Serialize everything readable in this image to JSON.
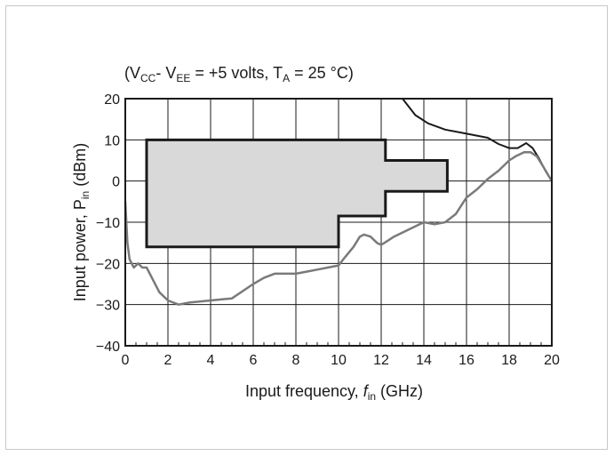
{
  "chart_data": {
    "type": "line",
    "title": "(V_CC - V_EE = +5 volts, T_A = 25 °C)",
    "title_parts": {
      "open": "(V",
      "cc": "CC",
      "mid": "- V",
      "ee": "EE",
      "eq": " = +5 volts, T",
      "ta": "A",
      "tail": " = 25 °C)"
    },
    "xlabel": "Input frequency, f_in (GHz)",
    "xlabel_parts": {
      "text": "Input frequency, ",
      "f": "f",
      "sub": "in",
      "unit": " (GHz)"
    },
    "ylabel": "Input power, P_in (dBm)",
    "ylabel_parts": {
      "text": "Input power, P",
      "sub": "in",
      "unit": " (dBm)"
    },
    "xlim": [
      0,
      20
    ],
    "ylim": [
      -40,
      20
    ],
    "x_ticks": [
      0,
      2,
      4,
      6,
      8,
      10,
      12,
      14,
      16,
      18,
      20
    ],
    "y_ticks": [
      20,
      10,
      0,
      -10,
      -20,
      -30,
      -40
    ],
    "grid": true,
    "legend": "none",
    "region_color": "#d9d9d9",
    "operating_region": [
      [
        1,
        10
      ],
      [
        12.2,
        10
      ],
      [
        12.2,
        5
      ],
      [
        15.1,
        5
      ],
      [
        15.1,
        -2.5
      ],
      [
        12.2,
        -2.5
      ],
      [
        12.2,
        -8.5
      ],
      [
        10,
        -8.5
      ],
      [
        10,
        -16
      ],
      [
        1,
        -16
      ]
    ],
    "series": [
      {
        "color": "#1a1a1a",
        "x": [
          13.0,
          13.6,
          14.2,
          15.0,
          16.0,
          17.0,
          17.5,
          18.0,
          18.4,
          18.8,
          19.1,
          19.4,
          19.7,
          20.0
        ],
        "y": [
          20,
          16,
          14,
          12.5,
          11.5,
          10.5,
          9.0,
          8.0,
          8.0,
          9.2,
          8.0,
          5.5,
          2.5,
          0
        ]
      },
      {
        "color": "#7a7a7a",
        "x": [
          0.0,
          0.1,
          0.2,
          0.4,
          0.6,
          0.8,
          1.0,
          1.3,
          1.6,
          2.0,
          2.5,
          3.0,
          4.0,
          5.0,
          6.0,
          6.5,
          7.0,
          8.0,
          8.5,
          9.0,
          9.5,
          10.0,
          10.3,
          10.7,
          11.0,
          11.2,
          11.5,
          11.8,
          12.0,
          12.3,
          12.6,
          13.0,
          14.0,
          14.5,
          15.0,
          15.5,
          16.0,
          16.5,
          17.0,
          17.5,
          18.0,
          18.3,
          18.7,
          19.0,
          19.3,
          19.6,
          20.0
        ],
        "y": [
          -5,
          -15,
          -19,
          -21,
          -20,
          -21,
          -21,
          -24,
          -27,
          -29,
          -30,
          -29.5,
          -29,
          -28.5,
          -25,
          -23.5,
          -22.5,
          -22.5,
          -22,
          -21.5,
          -21,
          -20.5,
          -18.5,
          -16,
          -13.5,
          -13,
          -13.5,
          -15,
          -15.5,
          -14.5,
          -13.5,
          -12.5,
          -10,
          -10.5,
          -10,
          -8,
          -4,
          -2,
          0.5,
          2.5,
          5,
          6,
          7,
          7,
          6,
          3.5,
          0
        ]
      }
    ]
  }
}
